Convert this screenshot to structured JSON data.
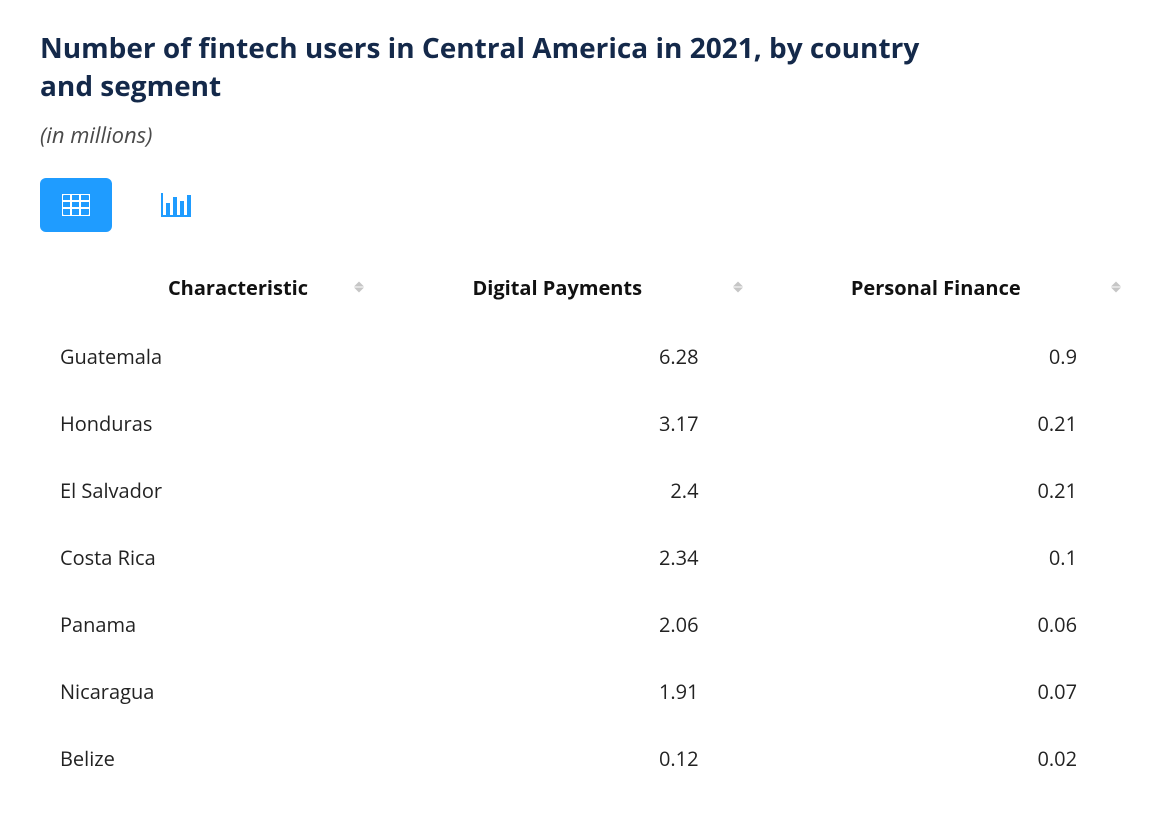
{
  "header": {
    "title": "Number of fintech users in Central America in 2021, by country and segment",
    "subtitle": "(in millions)",
    "title_color": "#14294a",
    "title_fontsize": 28,
    "subtitle_fontsize": 22,
    "subtitle_color": "#4a4a4a"
  },
  "view_toggle": {
    "active": "table",
    "active_bg": "#1f9cff",
    "icon_color_active": "#ffffff",
    "icon_color_inactive": "#1f9cff",
    "options": [
      "table",
      "chart"
    ]
  },
  "table": {
    "type": "table",
    "background_color": "#ffffff",
    "header_fontsize": 20,
    "header_fontweight": 700,
    "body_fontsize": 20,
    "sort_caret_color": "#c6c6c6",
    "columns": [
      {
        "key": "characteristic",
        "label": "Characteristic",
        "align": "left",
        "sortable": true
      },
      {
        "key": "digital_payments",
        "label": "Digital Payments",
        "align": "right",
        "sortable": true
      },
      {
        "key": "personal_finance",
        "label": "Personal Finance",
        "align": "right",
        "sortable": true
      }
    ],
    "rows": [
      {
        "characteristic": "Guatemala",
        "digital_payments": "6.28",
        "personal_finance": "0.9"
      },
      {
        "characteristic": "Honduras",
        "digital_payments": "3.17",
        "personal_finance": "0.21"
      },
      {
        "characteristic": "El Salvador",
        "digital_payments": "2.4",
        "personal_finance": "0.21"
      },
      {
        "characteristic": "Costa Rica",
        "digital_payments": "2.34",
        "personal_finance": "0.1"
      },
      {
        "characteristic": "Panama",
        "digital_payments": "2.06",
        "personal_finance": "0.06"
      },
      {
        "characteristic": "Nicaragua",
        "digital_payments": "1.91",
        "personal_finance": "0.07"
      },
      {
        "characteristic": "Belize",
        "digital_payments": "0.12",
        "personal_finance": "0.02"
      }
    ]
  }
}
